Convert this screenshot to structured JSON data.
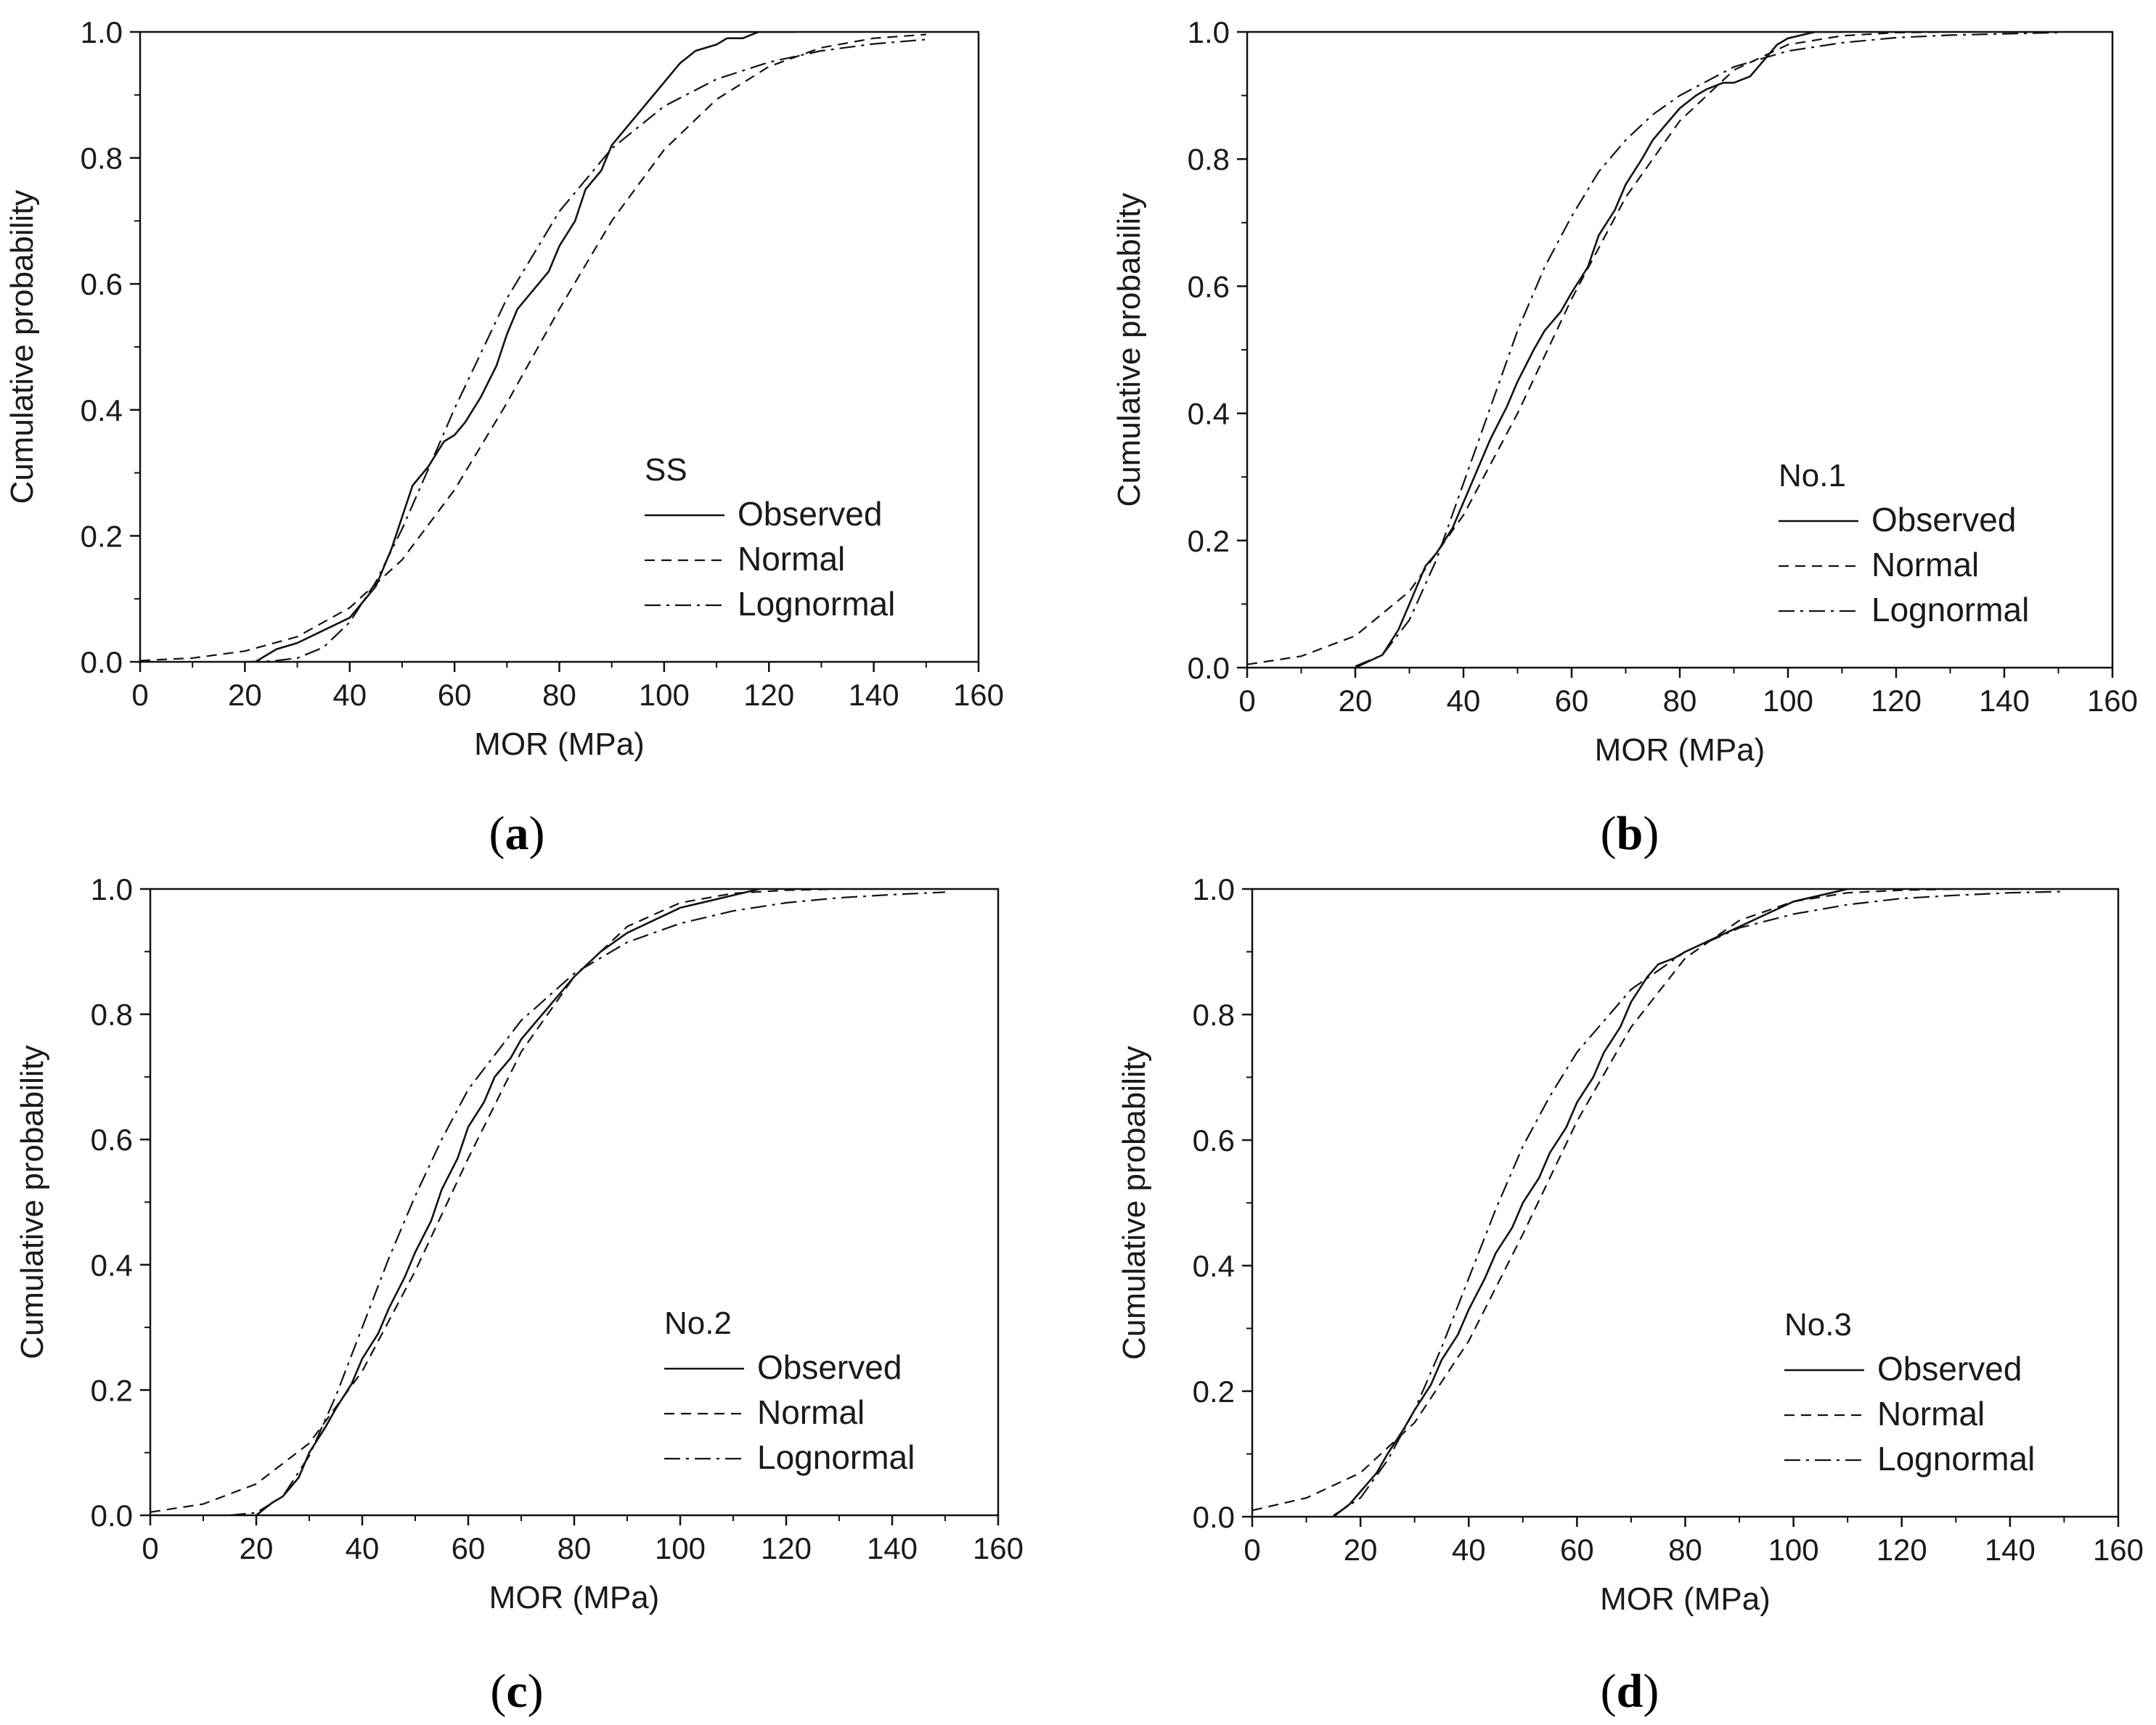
{
  "figure": {
    "panel_labels": [
      "(a)",
      "(b)",
      "(c)",
      "(d)"
    ]
  },
  "chart_data": [
    {
      "type": "line",
      "panel": "(a)",
      "xlabel": "MOR (MPa)",
      "ylabel": "Cumulative probability",
      "xlim": [
        0,
        160
      ],
      "ylim": [
        0.0,
        1.0
      ],
      "xticks": [
        "0",
        "20",
        "40",
        "60",
        "80",
        "100",
        "120",
        "140",
        "160"
      ],
      "yticks": [
        "0.0",
        "0.2",
        "0.4",
        "0.6",
        "0.8",
        "1.0"
      ],
      "legend_title": "SS",
      "legend_position": "lower-right",
      "series": [
        {
          "name": "Observed",
          "style": "solid",
          "x": [
            22,
            26,
            30,
            35,
            40,
            45,
            48,
            50,
            52,
            55,
            58,
            60,
            62,
            65,
            68,
            70,
            72,
            75,
            78,
            80,
            83,
            85,
            88,
            90,
            93,
            96,
            100,
            103,
            106,
            110,
            112,
            115,
            118,
            120,
            125
          ],
          "y": [
            0.0,
            0.02,
            0.03,
            0.05,
            0.07,
            0.12,
            0.18,
            0.23,
            0.28,
            0.31,
            0.35,
            0.36,
            0.38,
            0.42,
            0.47,
            0.52,
            0.56,
            0.59,
            0.62,
            0.66,
            0.7,
            0.75,
            0.78,
            0.82,
            0.85,
            0.88,
            0.92,
            0.95,
            0.97,
            0.98,
            0.99,
            0.99,
            1.0,
            1.0,
            1.0
          ]
        },
        {
          "name": "Normal",
          "style": "dashed",
          "x": [
            0,
            10,
            20,
            30,
            40,
            50,
            60,
            70,
            80,
            90,
            100,
            110,
            120,
            130,
            140,
            150
          ],
          "y": [
            0.002,
            0.006,
            0.017,
            0.04,
            0.086,
            0.162,
            0.273,
            0.411,
            0.56,
            0.7,
            0.813,
            0.893,
            0.945,
            0.975,
            0.99,
            0.996
          ]
        },
        {
          "name": "Lognormal",
          "style": "dashdot",
          "x": [
            20,
            25,
            30,
            35,
            40,
            45,
            50,
            55,
            60,
            70,
            80,
            90,
            100,
            110,
            120,
            130,
            140,
            150
          ],
          "y": [
            0.0,
            0.001,
            0.006,
            0.023,
            0.063,
            0.127,
            0.211,
            0.306,
            0.402,
            0.577,
            0.715,
            0.815,
            0.882,
            0.925,
            0.952,
            0.97,
            0.981,
            0.988
          ]
        }
      ]
    },
    {
      "type": "line",
      "panel": "(b)",
      "xlabel": "MOR (MPa)",
      "ylabel": "Cumulative probability",
      "xlim": [
        0,
        160
      ],
      "ylim": [
        0.0,
        1.0
      ],
      "xticks": [
        "0",
        "20",
        "40",
        "60",
        "80",
        "100",
        "120",
        "140",
        "160"
      ],
      "yticks": [
        "0.0",
        "0.2",
        "0.4",
        "0.6",
        "0.8",
        "1.0"
      ],
      "legend_title": "No.1",
      "legend_position": "lower-right",
      "series": [
        {
          "name": "Observed",
          "style": "solid",
          "x": [
            20,
            25,
            28,
            30,
            33,
            35,
            38,
            40,
            42,
            45,
            48,
            50,
            53,
            55,
            58,
            60,
            63,
            65,
            68,
            70,
            73,
            75,
            78,
            80,
            83,
            85,
            88,
            90,
            93,
            95,
            98,
            100,
            105,
            110
          ],
          "y": [
            0.0,
            0.02,
            0.06,
            0.1,
            0.16,
            0.18,
            0.22,
            0.26,
            0.3,
            0.36,
            0.41,
            0.45,
            0.5,
            0.53,
            0.56,
            0.59,
            0.63,
            0.68,
            0.72,
            0.76,
            0.8,
            0.83,
            0.86,
            0.88,
            0.9,
            0.91,
            0.92,
            0.92,
            0.93,
            0.95,
            0.98,
            0.99,
            1.0,
            1.0
          ]
        },
        {
          "name": "Normal",
          "style": "dashed",
          "x": [
            0,
            10,
            20,
            30,
            40,
            50,
            60,
            70,
            80,
            90,
            100,
            110,
            120,
            130,
            140,
            150
          ],
          "y": [
            0.005,
            0.018,
            0.05,
            0.12,
            0.24,
            0.4,
            0.58,
            0.74,
            0.86,
            0.94,
            0.98,
            0.994,
            0.999,
            1.0,
            1.0,
            1.0
          ]
        },
        {
          "name": "Lognormal",
          "style": "dashdot",
          "x": [
            20,
            25,
            30,
            35,
            40,
            45,
            50,
            55,
            60,
            65,
            70,
            75,
            80,
            90,
            100,
            110,
            120,
            130,
            140,
            150
          ],
          "y": [
            0.002,
            0.02,
            0.075,
            0.17,
            0.29,
            0.41,
            0.53,
            0.63,
            0.71,
            0.78,
            0.83,
            0.87,
            0.9,
            0.945,
            0.97,
            0.983,
            0.991,
            0.995,
            0.997,
            0.999
          ]
        }
      ]
    },
    {
      "type": "line",
      "panel": "(c)",
      "xlabel": "MOR (MPa)",
      "ylabel": "Cumulative probability",
      "xlim": [
        0,
        160
      ],
      "ylim": [
        0.0,
        1.0
      ],
      "xticks": [
        "0",
        "20",
        "40",
        "60",
        "80",
        "100",
        "120",
        "140",
        "160"
      ],
      "yticks": [
        "0.0",
        "0.2",
        "0.4",
        "0.6",
        "0.8",
        "1.0"
      ],
      "legend_title": "No.2",
      "legend_position": "lower-right",
      "series": [
        {
          "name": "Observed",
          "style": "solid",
          "x": [
            20,
            23,
            25,
            28,
            30,
            33,
            35,
            38,
            40,
            43,
            45,
            48,
            50,
            53,
            55,
            58,
            60,
            63,
            65,
            68,
            70,
            73,
            75,
            78,
            80,
            85,
            90,
            95,
            100,
            105,
            110,
            115
          ],
          "y": [
            0.0,
            0.02,
            0.03,
            0.06,
            0.1,
            0.14,
            0.17,
            0.21,
            0.25,
            0.29,
            0.33,
            0.38,
            0.42,
            0.47,
            0.52,
            0.57,
            0.62,
            0.66,
            0.7,
            0.73,
            0.76,
            0.79,
            0.81,
            0.84,
            0.86,
            0.9,
            0.93,
            0.95,
            0.97,
            0.98,
            0.99,
            1.0
          ]
        },
        {
          "name": "Normal",
          "style": "dashed",
          "x": [
            0,
            10,
            20,
            30,
            40,
            50,
            60,
            70,
            80,
            90,
            100,
            110,
            120,
            130,
            140,
            150
          ],
          "y": [
            0.005,
            0.018,
            0.05,
            0.115,
            0.23,
            0.39,
            0.57,
            0.74,
            0.86,
            0.94,
            0.978,
            0.993,
            0.998,
            1.0,
            1.0,
            1.0
          ]
        },
        {
          "name": "Lognormal",
          "style": "dashdot",
          "x": [
            15,
            20,
            25,
            30,
            35,
            40,
            45,
            50,
            55,
            60,
            70,
            80,
            90,
            100,
            110,
            120,
            130,
            140,
            150
          ],
          "y": [
            0.0,
            0.004,
            0.03,
            0.095,
            0.19,
            0.3,
            0.41,
            0.51,
            0.6,
            0.68,
            0.79,
            0.865,
            0.915,
            0.945,
            0.965,
            0.978,
            0.986,
            0.991,
            0.995
          ]
        }
      ]
    },
    {
      "type": "line",
      "panel": "(d)",
      "xlabel": "MOR (MPa)",
      "ylabel": "Cumulative probability",
      "xlim": [
        0,
        160
      ],
      "ylim": [
        0.0,
        1.0
      ],
      "xticks": [
        "0",
        "20",
        "40",
        "60",
        "80",
        "100",
        "120",
        "140",
        "160"
      ],
      "yticks": [
        "0.0",
        "0.2",
        "0.4",
        "0.6",
        "0.8",
        "1.0"
      ],
      "legend_title": "No.3",
      "legend_position": "lower-right",
      "series": [
        {
          "name": "Observed",
          "style": "solid",
          "x": [
            15,
            18,
            20,
            23,
            25,
            28,
            30,
            33,
            35,
            38,
            40,
            43,
            45,
            48,
            50,
            53,
            55,
            58,
            60,
            63,
            65,
            68,
            70,
            73,
            75,
            78,
            80,
            85,
            90,
            95,
            100,
            105,
            110
          ],
          "y": [
            0.0,
            0.02,
            0.04,
            0.07,
            0.1,
            0.14,
            0.17,
            0.21,
            0.25,
            0.29,
            0.33,
            0.38,
            0.42,
            0.46,
            0.5,
            0.54,
            0.58,
            0.62,
            0.66,
            0.7,
            0.74,
            0.78,
            0.82,
            0.86,
            0.88,
            0.89,
            0.9,
            0.92,
            0.94,
            0.96,
            0.98,
            0.99,
            1.0
          ]
        },
        {
          "name": "Normal",
          "style": "dashed",
          "x": [
            0,
            10,
            20,
            30,
            40,
            50,
            60,
            70,
            80,
            90,
            100,
            110,
            120,
            130,
            140,
            150
          ],
          "y": [
            0.01,
            0.03,
            0.07,
            0.15,
            0.28,
            0.45,
            0.63,
            0.78,
            0.89,
            0.95,
            0.98,
            0.994,
            0.998,
            1.0,
            1.0,
            1.0
          ]
        },
        {
          "name": "Lognormal",
          "style": "dashdot",
          "x": [
            15,
            20,
            25,
            30,
            35,
            40,
            45,
            50,
            55,
            60,
            70,
            80,
            90,
            100,
            110,
            120,
            130,
            140,
            150
          ],
          "y": [
            0.002,
            0.03,
            0.09,
            0.17,
            0.27,
            0.38,
            0.49,
            0.59,
            0.67,
            0.74,
            0.84,
            0.9,
            0.938,
            0.96,
            0.975,
            0.985,
            0.99,
            0.994,
            0.996
          ]
        }
      ]
    }
  ]
}
